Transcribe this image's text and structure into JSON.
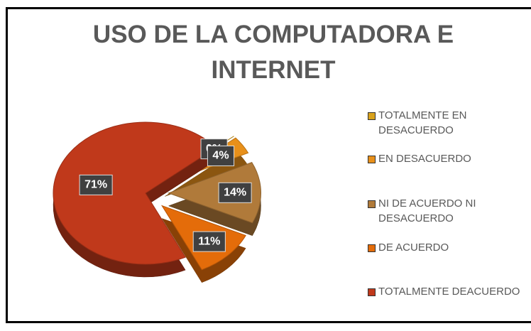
{
  "chart_data": {
    "type": "pie",
    "title": "USO DE LA COMPUTADORA  E INTERNET",
    "categories": [
      "TOTALMENTE EN DESACUERDO",
      "EN DESACUERDO",
      "NI DE ACUERDO NI DESACUERDO",
      "DE ACUERDO",
      "TOTALMENTE DEACUERDO"
    ],
    "values": [
      0,
      4,
      14,
      11,
      71
    ],
    "value_labels": [
      "0%",
      "4%",
      "14%",
      "11%",
      "71%"
    ],
    "colors": [
      "#d9a21c",
      "#e8901a",
      "#b07a3a",
      "#e46c0a",
      "#c0391b"
    ],
    "legend": "right"
  }
}
